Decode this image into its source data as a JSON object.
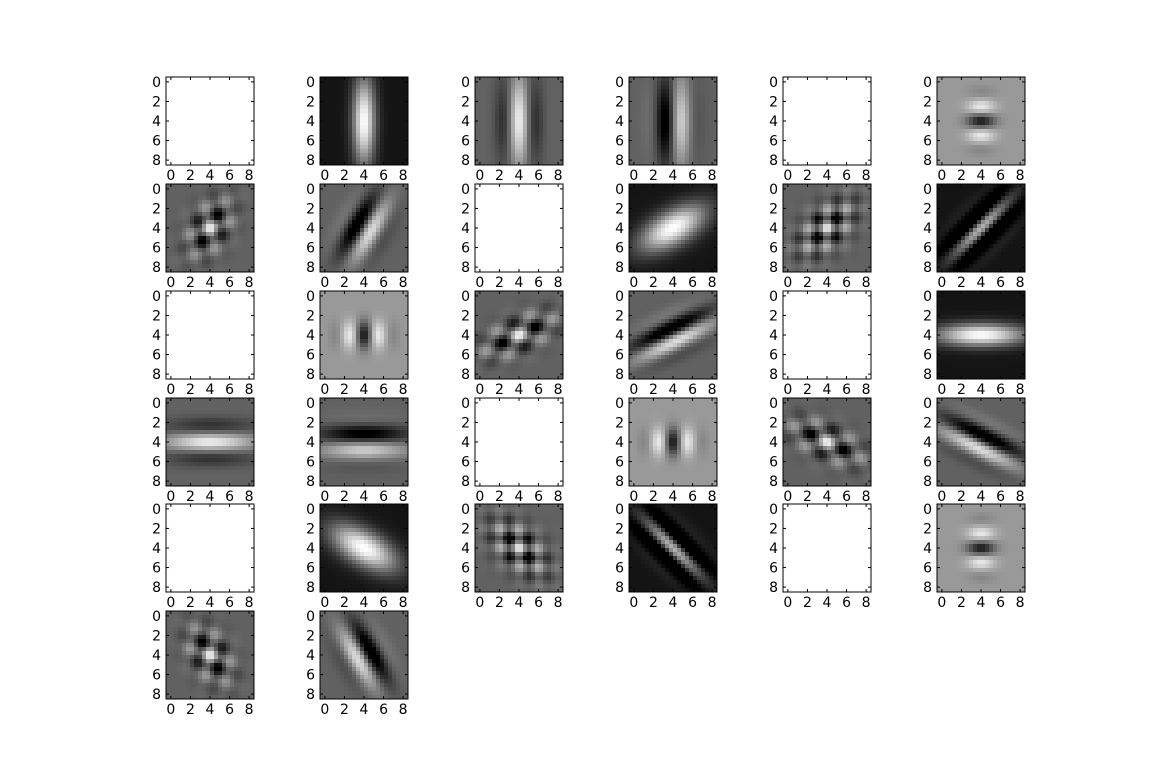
{
  "chart_data": {
    "type": "heatmap",
    "colormap": "gray",
    "grid_rows": 6,
    "grid_cols": 6,
    "panel_count": 32,
    "image_size": [
      9,
      9
    ],
    "x_ticks": [
      "0",
      "2",
      "4",
      "6",
      "8"
    ],
    "y_ticks": [
      "0",
      "2",
      "4",
      "6",
      "8"
    ],
    "title": "",
    "xlabel": "",
    "ylabel": "",
    "panels": [
      {
        "index": 0,
        "pattern": "blank"
      },
      {
        "index": 1,
        "pattern": "vertical-blob",
        "background": "dark"
      },
      {
        "index": 2,
        "pattern": "vertical-stripe",
        "background": "mid"
      },
      {
        "index": 3,
        "pattern": "vertical-stripe-odd",
        "background": "mid"
      },
      {
        "index": 4,
        "pattern": "blank"
      },
      {
        "index": 5,
        "pattern": "horizontal-ripple",
        "background": "light"
      },
      {
        "index": 6,
        "pattern": "diagonal-checker",
        "background": "mid"
      },
      {
        "index": 7,
        "pattern": "diagonal-stripe",
        "background": "mid"
      },
      {
        "index": 8,
        "pattern": "blank"
      },
      {
        "index": 9,
        "pattern": "diagonal-blob",
        "background": "dark"
      },
      {
        "index": 10,
        "pattern": "diagonal-checker-fine",
        "background": "mid"
      },
      {
        "index": 11,
        "pattern": "diagonal-stripe-fine",
        "background": "dark"
      },
      {
        "index": 12,
        "pattern": "blank"
      },
      {
        "index": 13,
        "pattern": "vertical-ripple",
        "background": "light"
      },
      {
        "index": 14,
        "pattern": "shallow-diagonal-checker",
        "background": "mid"
      },
      {
        "index": 15,
        "pattern": "shallow-diagonal-stripe",
        "background": "mid"
      },
      {
        "index": 16,
        "pattern": "blank"
      },
      {
        "index": 17,
        "pattern": "horizontal-blob",
        "background": "dark"
      },
      {
        "index": 18,
        "pattern": "horizontal-stripe",
        "background": "mid"
      },
      {
        "index": 19,
        "pattern": "horizontal-stripe-odd",
        "background": "mid"
      },
      {
        "index": 20,
        "pattern": "blank"
      },
      {
        "index": 21,
        "pattern": "vertical-ripple",
        "background": "light"
      },
      {
        "index": 22,
        "pattern": "shallow-antidiagonal-checker",
        "background": "mid"
      },
      {
        "index": 23,
        "pattern": "shallow-antidiagonal-stripe",
        "background": "mid"
      },
      {
        "index": 24,
        "pattern": "blank"
      },
      {
        "index": 25,
        "pattern": "antidiagonal-blob",
        "background": "dark"
      },
      {
        "index": 26,
        "pattern": "antidiagonal-checker-fine",
        "background": "mid"
      },
      {
        "index": 27,
        "pattern": "antidiagonal-stripe-fine",
        "background": "dark"
      },
      {
        "index": 28,
        "pattern": "blank"
      },
      {
        "index": 29,
        "pattern": "horizontal-ripple",
        "background": "light"
      },
      {
        "index": 30,
        "pattern": "antidiagonal-checker",
        "background": "mid"
      },
      {
        "index": 31,
        "pattern": "antidiagonal-stripe",
        "background": "mid"
      }
    ]
  }
}
